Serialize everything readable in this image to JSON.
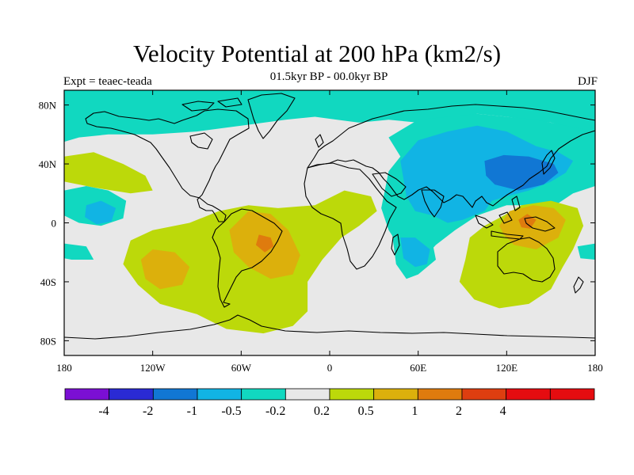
{
  "header": {
    "title": "Velocity Potential at 200 hPa (km2/s)",
    "subtitle": "01.5kyr BP - 00.0kyr BP",
    "left_label": "Expt = teaec-teada",
    "right_label": "DJF"
  },
  "chart_data": {
    "type": "heatmap",
    "projection": "cylindrical-equidistant",
    "title": "Velocity Potential at 200 hPa (km2/s)",
    "xlim": [
      -180,
      180
    ],
    "ylim": [
      -90,
      90
    ],
    "x_ticks": [
      {
        "value": -180,
        "label": "180"
      },
      {
        "value": -120,
        "label": "120W"
      },
      {
        "value": -60,
        "label": "60W"
      },
      {
        "value": 0,
        "label": "0"
      },
      {
        "value": 60,
        "label": "60E"
      },
      {
        "value": 120,
        "label": "120E"
      },
      {
        "value": 180,
        "label": "180"
      }
    ],
    "y_ticks": [
      {
        "value": 80,
        "label": "80N"
      },
      {
        "value": 40,
        "label": "40N"
      },
      {
        "value": 0,
        "label": "0"
      },
      {
        "value": -40,
        "label": "40S"
      },
      {
        "value": -80,
        "label": "80S"
      }
    ],
    "background_color": "#e8e8e8",
    "levels": [
      {
        "label": "-4",
        "color": "#7b0fd4"
      },
      {
        "label": "-2",
        "color": "#2a2ad4"
      },
      {
        "label": "-1",
        "color": "#1177d4"
      },
      {
        "label": "-0.5",
        "color": "#11b4e4"
      },
      {
        "label": "-0.2",
        "color": "#11d8c0"
      },
      {
        "label": "0.2",
        "color": "#e8e8e8"
      },
      {
        "label": "0.5",
        "color": "#bcd90a"
      },
      {
        "label": "1",
        "color": "#dcb00c"
      },
      {
        "label": "2",
        "color": "#df7b0e"
      },
      {
        "label": "4",
        "color": "#de3e10"
      },
      {
        "label": "",
        "color": "#e50c10"
      },
      {
        "label": "",
        "color": "#e50c10"
      }
    ],
    "regions": [
      {
        "name": "arctic-band",
        "color": "#11d8c0",
        "points": [
          [
            -180,
            90
          ],
          [
            180,
            90
          ],
          [
            180,
            60
          ],
          [
            150,
            68
          ],
          [
            120,
            72
          ],
          [
            100,
            74
          ],
          [
            80,
            70
          ],
          [
            60,
            68
          ],
          [
            40,
            70
          ],
          [
            20,
            68
          ],
          [
            5,
            70
          ],
          [
            -10,
            72
          ],
          [
            -30,
            70
          ],
          [
            -60,
            66
          ],
          [
            -90,
            62
          ],
          [
            -120,
            60
          ],
          [
            -150,
            60
          ],
          [
            -170,
            58
          ],
          [
            -180,
            55
          ]
        ]
      },
      {
        "name": "asia-trough",
        "color": "#11d8c0",
        "points": [
          [
            40,
            58
          ],
          [
            60,
            70
          ],
          [
            100,
            74
          ],
          [
            140,
            70
          ],
          [
            180,
            62
          ],
          [
            180,
            25
          ],
          [
            165,
            20
          ],
          [
            150,
            10
          ],
          [
            145,
            12
          ],
          [
            120,
            12
          ],
          [
            100,
            5
          ],
          [
            85,
            -5
          ],
          [
            72,
            -15
          ],
          [
            60,
            -28
          ],
          [
            50,
            -20
          ],
          [
            40,
            -5
          ],
          [
            35,
            10
          ],
          [
            40,
            35
          ],
          [
            48,
            45
          ]
        ]
      },
      {
        "name": "asia-core",
        "color": "#11b4e4",
        "points": [
          [
            52,
            18
          ],
          [
            48,
            42
          ],
          [
            60,
            56
          ],
          [
            80,
            62
          ],
          [
            100,
            66
          ],
          [
            120,
            62
          ],
          [
            140,
            52
          ],
          [
            155,
            48
          ],
          [
            165,
            42
          ],
          [
            160,
            34
          ],
          [
            150,
            28
          ],
          [
            135,
            22
          ],
          [
            120,
            18
          ],
          [
            110,
            15
          ],
          [
            105,
            8
          ],
          [
            90,
            2
          ],
          [
            80,
            0
          ],
          [
            70,
            5
          ],
          [
            58,
            8
          ]
        ]
      },
      {
        "name": "japan-deep",
        "color": "#1177d4",
        "points": [
          [
            105,
            42
          ],
          [
            118,
            46
          ],
          [
            135,
            45
          ],
          [
            152,
            40
          ],
          [
            155,
            34
          ],
          [
            145,
            26
          ],
          [
            128,
            22
          ],
          [
            112,
            26
          ],
          [
            106,
            32
          ]
        ]
      },
      {
        "name": "pacific-neg",
        "color": "#11d8c0",
        "points": [
          [
            -180,
            22
          ],
          [
            -165,
            25
          ],
          [
            -150,
            22
          ],
          [
            -138,
            15
          ],
          [
            -140,
            3
          ],
          [
            -155,
            -2
          ],
          [
            -170,
            0
          ],
          [
            -180,
            5
          ]
        ]
      },
      {
        "name": "pacific-neg-core",
        "color": "#11b4e4",
        "points": [
          [
            -165,
            12
          ],
          [
            -155,
            15
          ],
          [
            -145,
            10
          ],
          [
            -148,
            1
          ],
          [
            -158,
            -1
          ],
          [
            -166,
            4
          ]
        ]
      },
      {
        "name": "south-africa-tongue",
        "color": "#11d8c0",
        "points": [
          [
            42,
            -5
          ],
          [
            50,
            -8
          ],
          [
            70,
            -15
          ],
          [
            72,
            -25
          ],
          [
            60,
            -35
          ],
          [
            52,
            -38
          ],
          [
            45,
            -28
          ]
        ]
      },
      {
        "name": "south-africa-core",
        "color": "#11b4e4",
        "points": [
          [
            48,
            -10
          ],
          [
            58,
            -10
          ],
          [
            68,
            -18
          ],
          [
            66,
            -28
          ],
          [
            58,
            -30
          ],
          [
            50,
            -24
          ]
        ]
      },
      {
        "name": "south-pacific-neg",
        "color": "#11d8c0",
        "points": [
          [
            -180,
            -14
          ],
          [
            -165,
            -16
          ],
          0,
          [
            -160,
            -25
          ],
          [
            -175,
            -25
          ],
          [
            -180,
            -24
          ]
        ]
      },
      {
        "name": "east-pacific-neg",
        "color": "#11d8c0",
        "points": [
          [
            168,
            -16
          ],
          [
            180,
            -14
          ],
          [
            180,
            -25
          ],
          [
            170,
            -24
          ]
        ]
      },
      {
        "name": "north-pacific-pos",
        "color": "#bcd90a",
        "points": [
          [
            -180,
            45
          ],
          [
            -160,
            48
          ],
          [
            -140,
            40
          ],
          [
            -125,
            32
          ],
          [
            -120,
            22
          ],
          [
            -135,
            20
          ],
          [
            -160,
            24
          ],
          [
            -180,
            28
          ]
        ]
      },
      {
        "name": "americas-pos",
        "color": "#bcd90a",
        "points": [
          [
            -135,
            -12
          ],
          [
            -120,
            -5
          ],
          [
            -95,
            0
          ],
          [
            -75,
            8
          ],
          [
            -55,
            12
          ],
          [
            -35,
            10
          ],
          [
            -10,
            12
          ],
          [
            10,
            22
          ],
          [
            28,
            18
          ],
          [
            32,
            8
          ],
          [
            20,
            -2
          ],
          [
            8,
            -10
          ],
          [
            -5,
            -25
          ],
          [
            -15,
            -40
          ],
          [
            -15,
            -60
          ],
          [
            -25,
            -70
          ],
          [
            -45,
            -75
          ],
          [
            -70,
            -72
          ],
          [
            -90,
            -62
          ],
          [
            -115,
            -55
          ],
          [
            -130,
            -42
          ],
          [
            -140,
            -28
          ]
        ]
      },
      {
        "name": "pacific-orange",
        "color": "#dcb00c",
        "points": [
          [
            -120,
            -18
          ],
          [
            -105,
            -20
          ],
          [
            -95,
            -30
          ],
          [
            -100,
            -42
          ],
          [
            -115,
            -45
          ],
          [
            -125,
            -38
          ],
          [
            -128,
            -25
          ]
        ]
      },
      {
        "name": "brazil-orange",
        "color": "#dcb00c",
        "points": [
          [
            -68,
            -5
          ],
          [
            -55,
            8
          ],
          [
            -40,
            6
          ],
          [
            -28,
            -5
          ],
          [
            -20,
            -22
          ],
          [
            -25,
            -35
          ],
          [
            -40,
            -38
          ],
          [
            -55,
            -30
          ],
          [
            -65,
            -20
          ]
        ]
      },
      {
        "name": "brazil-core",
        "color": "#df7b0e",
        "points": [
          [
            -48,
            -8
          ],
          [
            -40,
            -10
          ],
          [
            -38,
            -16
          ],
          [
            -44,
            -20
          ],
          [
            -50,
            -15
          ]
        ]
      },
      {
        "name": "maritime-pos",
        "color": "#bcd90a",
        "points": [
          [
            92,
            -25
          ],
          [
            95,
            -10
          ],
          [
            105,
            -2
          ],
          [
            118,
            5
          ],
          [
            130,
            12
          ],
          [
            150,
            15
          ],
          [
            168,
            10
          ],
          [
            172,
            -2
          ],
          [
            165,
            -18
          ],
          [
            158,
            -30
          ],
          [
            150,
            -45
          ],
          [
            135,
            -55
          ],
          [
            115,
            -58
          ],
          [
            98,
            -52
          ],
          [
            88,
            -40
          ]
        ]
      },
      {
        "name": "maritime-orange",
        "color": "#dcb00c",
        "points": [
          [
            115,
            -2
          ],
          [
            122,
            8
          ],
          [
            138,
            12
          ],
          [
            152,
            10
          ],
          [
            160,
            2
          ],
          [
            155,
            -10
          ],
          [
            140,
            -18
          ],
          [
            125,
            -15
          ],
          [
            118,
            -8
          ]
        ]
      },
      {
        "name": "maritime-core",
        "color": "#df7b0e",
        "points": [
          [
            128,
            2
          ],
          [
            134,
            6
          ],
          [
            140,
            2
          ],
          [
            136,
            -4
          ],
          [
            130,
            -3
          ]
        ]
      }
    ],
    "colorbar_orientation": "horizontal-bottom"
  }
}
